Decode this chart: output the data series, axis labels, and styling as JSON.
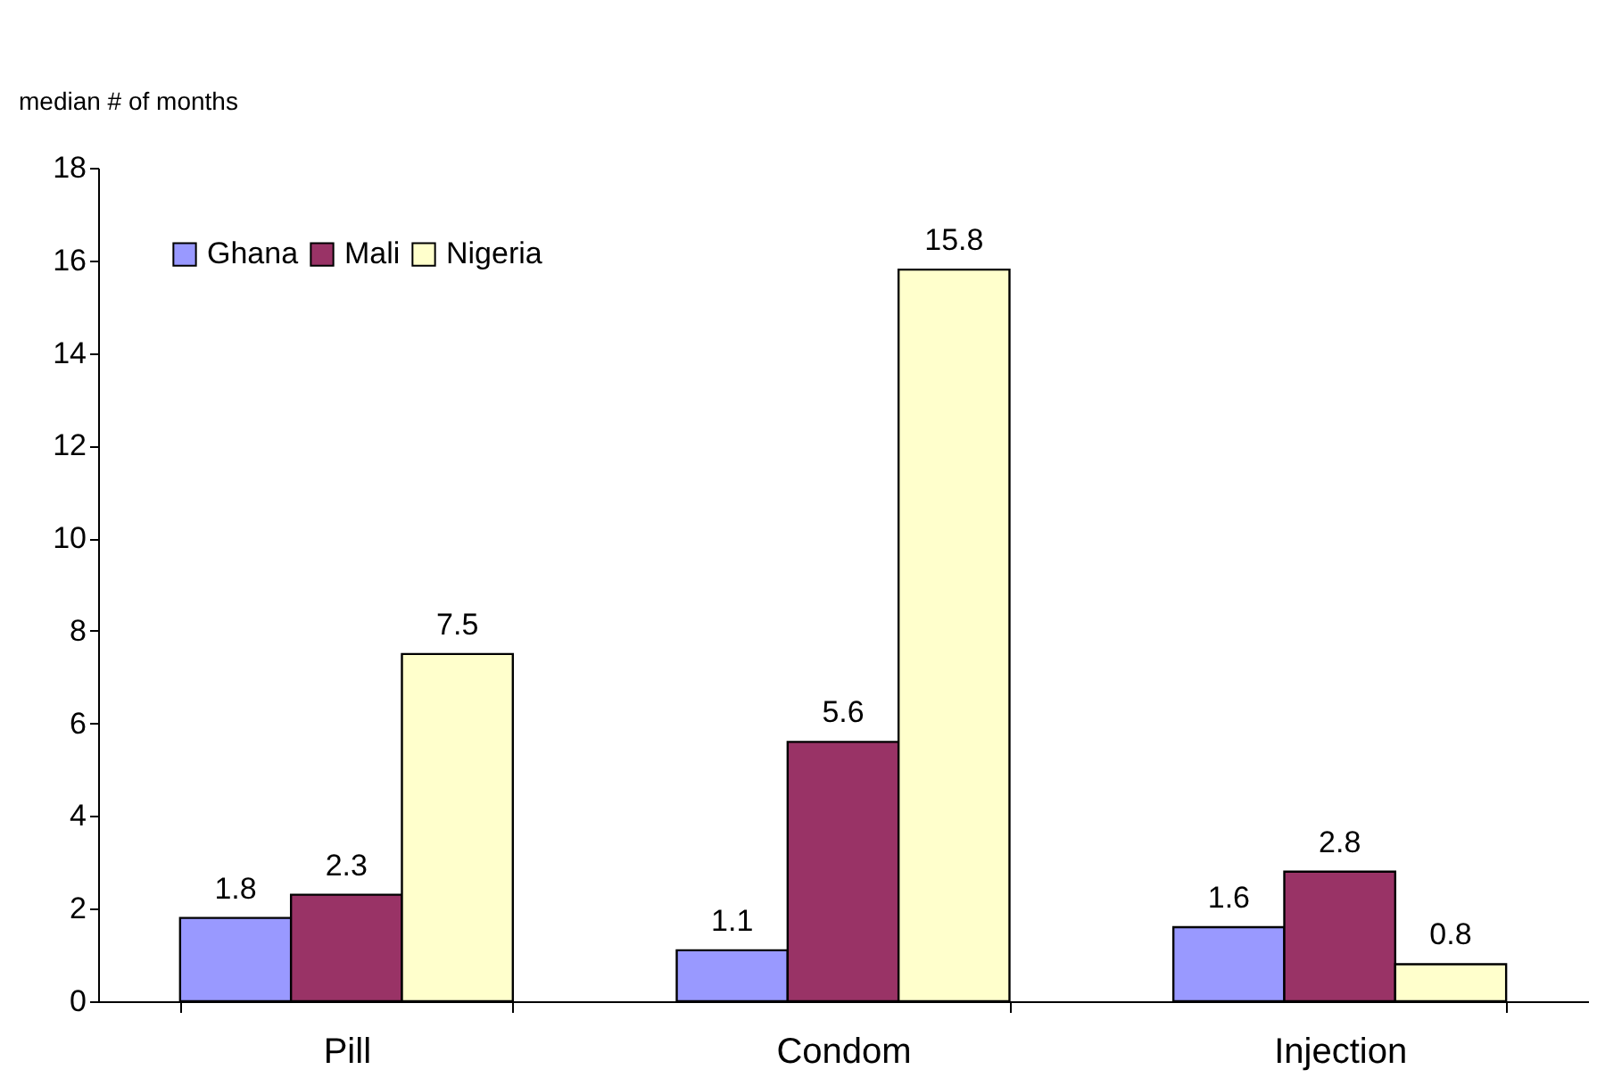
{
  "chart_data": {
    "type": "bar",
    "ylabel": "median # of months",
    "categories": [
      "Pill",
      "Condom",
      "Injection"
    ],
    "series": [
      {
        "name": "Ghana",
        "color": "#9999ff",
        "values": [
          1.8,
          1.1,
          1.6
        ]
      },
      {
        "name": "Mali",
        "color": "#993366",
        "values": [
          2.3,
          5.6,
          2.8
        ]
      },
      {
        "name": "Nigeria",
        "color": "#ffffcc",
        "values": [
          7.5,
          15.8,
          0.8
        ]
      }
    ],
    "ylim": [
      0,
      18
    ],
    "yticks": [
      0,
      2,
      4,
      6,
      8,
      10,
      12,
      14,
      16,
      18
    ],
    "data_labels": true,
    "grid": false,
    "legend": "top left"
  }
}
